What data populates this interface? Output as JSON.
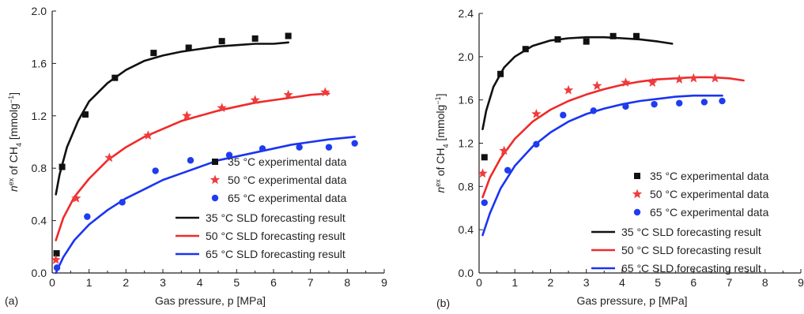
{
  "chart_data": [
    {
      "type": "scatter",
      "panel_label": "(a)",
      "xlabel": "Gas pressure, p [MPa]",
      "ylabel": "n^ex of CH4 [mmolg^-1]",
      "xlim": [
        0,
        9
      ],
      "ylim": [
        0,
        2.0
      ],
      "x_ticks": [
        "0",
        "1",
        "2",
        "3",
        "4",
        "5",
        "6",
        "7",
        "8",
        "9"
      ],
      "y_ticks": [
        "0.0",
        "0.4",
        "0.8",
        "1.2",
        "1.6",
        "2.0"
      ],
      "grid": false,
      "legend_position": "bottom-right",
      "scatter_series": [
        {
          "name": "35 °C experimental data",
          "marker": "square",
          "color": "#111111",
          "points": [
            [
              0.12,
              0.15
            ],
            [
              0.27,
              0.81
            ],
            [
              0.9,
              1.21
            ],
            [
              1.7,
              1.49
            ],
            [
              2.75,
              1.68
            ],
            [
              3.7,
              1.72
            ],
            [
              4.6,
              1.77
            ],
            [
              5.5,
              1.79
            ],
            [
              6.4,
              1.81
            ]
          ]
        },
        {
          "name": "50 °C experimental data",
          "marker": "star",
          "color": "#ef3c3c",
          "points": [
            [
              0.1,
              0.1
            ],
            [
              0.65,
              0.57
            ],
            [
              1.55,
              0.88
            ],
            [
              2.6,
              1.05
            ],
            [
              3.65,
              1.2
            ],
            [
              4.6,
              1.26
            ],
            [
              5.5,
              1.32
            ],
            [
              6.4,
              1.36
            ],
            [
              7.4,
              1.38
            ]
          ]
        },
        {
          "name": "65 °C experimental data",
          "marker": "circle",
          "color": "#1f3cf0",
          "points": [
            [
              0.13,
              0.04
            ],
            [
              0.95,
              0.43
            ],
            [
              1.9,
              0.54
            ],
            [
              2.8,
              0.78
            ],
            [
              3.75,
              0.86
            ],
            [
              4.8,
              0.9
            ],
            [
              5.7,
              0.95
            ],
            [
              6.7,
              0.96
            ],
            [
              7.5,
              0.96
            ],
            [
              8.2,
              0.99
            ]
          ]
        }
      ],
      "line_series": [
        {
          "name": "35 °C SLD forecasting result",
          "color": "#111111",
          "points": [
            [
              0.1,
              0.6
            ],
            [
              0.2,
              0.75
            ],
            [
              0.4,
              0.96
            ],
            [
              0.7,
              1.16
            ],
            [
              1.0,
              1.31
            ],
            [
              1.5,
              1.45
            ],
            [
              2.0,
              1.55
            ],
            [
              2.5,
              1.62
            ],
            [
              3.0,
              1.66
            ],
            [
              3.5,
              1.69
            ],
            [
              4.0,
              1.71
            ],
            [
              4.5,
              1.73
            ],
            [
              5.0,
              1.74
            ],
            [
              5.5,
              1.75
            ],
            [
              6.0,
              1.75
            ],
            [
              6.4,
              1.76
            ]
          ]
        },
        {
          "name": "50 °C SLD forecasting result",
          "color": "#ef2a2a",
          "points": [
            [
              0.1,
              0.25
            ],
            [
              0.3,
              0.42
            ],
            [
              0.6,
              0.58
            ],
            [
              1.0,
              0.72
            ],
            [
              1.5,
              0.86
            ],
            [
              2.0,
              0.96
            ],
            [
              2.5,
              1.04
            ],
            [
              3.0,
              1.1
            ],
            [
              3.5,
              1.16
            ],
            [
              4.0,
              1.2
            ],
            [
              4.5,
              1.24
            ],
            [
              5.0,
              1.27
            ],
            [
              5.5,
              1.3
            ],
            [
              6.0,
              1.32
            ],
            [
              6.5,
              1.34
            ],
            [
              7.0,
              1.36
            ],
            [
              7.5,
              1.37
            ]
          ]
        },
        {
          "name": "65 °C SLD forecasting result",
          "color": "#1a35f0",
          "points": [
            [
              0.1,
              0.0
            ],
            [
              0.3,
              0.12
            ],
            [
              0.6,
              0.25
            ],
            [
              1.0,
              0.37
            ],
            [
              1.5,
              0.48
            ],
            [
              2.0,
              0.57
            ],
            [
              2.5,
              0.64
            ],
            [
              3.0,
              0.71
            ],
            [
              3.5,
              0.76
            ],
            [
              4.0,
              0.81
            ],
            [
              4.5,
              0.86
            ],
            [
              5.0,
              0.89
            ],
            [
              5.5,
              0.92
            ],
            [
              6.0,
              0.95
            ],
            [
              6.5,
              0.98
            ],
            [
              7.0,
              1.0
            ],
            [
              7.5,
              1.02
            ],
            [
              8.2,
              1.04
            ]
          ]
        }
      ]
    },
    {
      "type": "scatter",
      "panel_label": "(b)",
      "xlabel": "Gas pressure, p [MPa]",
      "ylabel": "n^ex of CH4 [mmolg^-1]",
      "xlim": [
        0,
        9
      ],
      "ylim": [
        0,
        2.4
      ],
      "x_ticks": [
        "0",
        "1",
        "2",
        "3",
        "4",
        "5",
        "6",
        "7",
        "8",
        "9"
      ],
      "y_ticks": [
        "0.0",
        "0.4",
        "0.8",
        "1.2",
        "1.6",
        "2.0",
        "2.4"
      ],
      "grid": false,
      "legend_position": "bottom-right",
      "scatter_series": [
        {
          "name": "35 °C experimental data",
          "marker": "square",
          "color": "#111111",
          "points": [
            [
              0.15,
              1.07
            ],
            [
              0.6,
              1.84
            ],
            [
              1.3,
              2.07
            ],
            [
              2.2,
              2.16
            ],
            [
              3.0,
              2.14
            ],
            [
              3.75,
              2.19
            ],
            [
              4.4,
              2.19
            ]
          ]
        },
        {
          "name": "50 °C experimental data",
          "marker": "star",
          "color": "#ef3c3c",
          "points": [
            [
              0.1,
              0.92
            ],
            [
              0.7,
              1.13
            ],
            [
              1.6,
              1.47
            ],
            [
              2.5,
              1.69
            ],
            [
              3.3,
              1.73
            ],
            [
              4.1,
              1.76
            ],
            [
              4.85,
              1.76
            ],
            [
              5.6,
              1.79
            ],
            [
              6.0,
              1.8
            ],
            [
              6.6,
              1.8
            ]
          ]
        },
        {
          "name": "65 °C experimental data",
          "marker": "circle",
          "color": "#1f3cf0",
          "points": [
            [
              0.15,
              0.65
            ],
            [
              0.8,
              0.95
            ],
            [
              1.6,
              1.19
            ],
            [
              2.35,
              1.46
            ],
            [
              3.2,
              1.5
            ],
            [
              4.1,
              1.54
            ],
            [
              4.9,
              1.56
            ],
            [
              5.6,
              1.57
            ],
            [
              6.3,
              1.58
            ],
            [
              6.8,
              1.59
            ]
          ]
        }
      ],
      "line_series": [
        {
          "name": "35 °C SLD forecasting result",
          "color": "#111111",
          "points": [
            [
              0.1,
              1.33
            ],
            [
              0.2,
              1.5
            ],
            [
              0.4,
              1.72
            ],
            [
              0.7,
              1.9
            ],
            [
              1.0,
              2.0
            ],
            [
              1.5,
              2.1
            ],
            [
              2.0,
              2.15
            ],
            [
              2.5,
              2.17
            ],
            [
              3.0,
              2.18
            ],
            [
              3.5,
              2.18
            ],
            [
              4.0,
              2.17
            ],
            [
              4.5,
              2.16
            ],
            [
              5.0,
              2.14
            ],
            [
              5.4,
              2.12
            ]
          ]
        },
        {
          "name": "50 °C SLD forecasting result",
          "color": "#ef2a2a",
          "points": [
            [
              0.1,
              0.7
            ],
            [
              0.3,
              0.88
            ],
            [
              0.6,
              1.06
            ],
            [
              1.0,
              1.24
            ],
            [
              1.5,
              1.4
            ],
            [
              2.0,
              1.51
            ],
            [
              2.5,
              1.59
            ],
            [
              3.0,
              1.65
            ],
            [
              3.5,
              1.7
            ],
            [
              4.0,
              1.74
            ],
            [
              4.5,
              1.77
            ],
            [
              5.0,
              1.79
            ],
            [
              5.5,
              1.8
            ],
            [
              6.0,
              1.81
            ],
            [
              6.5,
              1.81
            ],
            [
              7.0,
              1.8
            ],
            [
              7.4,
              1.78
            ]
          ]
        },
        {
          "name": "65 °C SLD forecasting result",
          "color": "#1a35f0",
          "points": [
            [
              0.1,
              0.35
            ],
            [
              0.3,
              0.55
            ],
            [
              0.6,
              0.78
            ],
            [
              1.0,
              0.99
            ],
            [
              1.5,
              1.17
            ],
            [
              2.0,
              1.3
            ],
            [
              2.5,
              1.4
            ],
            [
              3.0,
              1.47
            ],
            [
              3.5,
              1.52
            ],
            [
              4.0,
              1.56
            ],
            [
              4.5,
              1.59
            ],
            [
              5.0,
              1.61
            ],
            [
              5.5,
              1.63
            ],
            [
              6.0,
              1.64
            ],
            [
              6.5,
              1.64
            ],
            [
              6.8,
              1.64
            ]
          ]
        }
      ]
    }
  ]
}
